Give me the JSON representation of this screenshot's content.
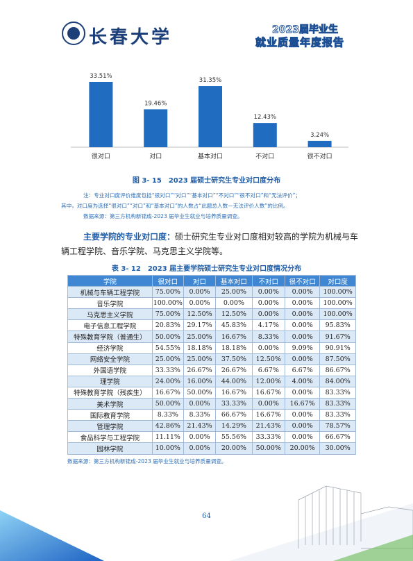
{
  "header": {
    "university": "长春大学",
    "report_year_line": "2023届毕业生",
    "report_title": "就业质量年度报告"
  },
  "chart_data": {
    "type": "bar",
    "categories": [
      "很对口",
      "对口",
      "基本对口",
      "不对口",
      "很不对口"
    ],
    "values": [
      33.51,
      19.46,
      31.35,
      12.43,
      3.24
    ],
    "value_labels": [
      "33.51%",
      "19.46%",
      "31.35%",
      "12.43%",
      "3.24%"
    ],
    "color": "#1f6cc0"
  },
  "figure_caption": "图 3- 15　2023 届硕士研究生专业对口度分布",
  "notes": {
    "line1": "注：专业对口度评价维度包括“很对口”“对口”“基本对口”“不对口”“很不对口”和“无法评价”；",
    "line2": "其中，对口度为选择“很对口”“对口”和“基本对口”的人数占“此题总人数—无法评价人数”的比例。",
    "source": "数据来源：第三方机构新锦成-2023 届毕业生就业与培养质量调查。"
  },
  "paragraph": {
    "lead": "主要学院的专业对口度：",
    "text": "硕士研究生专业对口度相对较高的学院为机械与车辆工程学院、音乐学院、马克思主义学院等。"
  },
  "table_caption": "表 3- 12　2023 届主要学院硕士研究生专业对口度情况分布",
  "table": {
    "header": [
      "学院",
      "很对口",
      "对口",
      "基本对口",
      "不对口",
      "很不对口",
      "对口度"
    ],
    "rows": [
      [
        "机械与车辆工程学院",
        "75.00%",
        "0.00%",
        "25.00%",
        "0.00%",
        "0.00%",
        "100.00%"
      ],
      [
        "音乐学院",
        "100.00%",
        "0.00%",
        "0.00%",
        "0.00%",
        "0.00%",
        "100.00%"
      ],
      [
        "马克思主义学院",
        "75.00%",
        "12.50%",
        "12.50%",
        "0.00%",
        "0.00%",
        "100.00%"
      ],
      [
        "电子信息工程学院",
        "20.83%",
        "29.17%",
        "45.83%",
        "4.17%",
        "0.00%",
        "95.83%"
      ],
      [
        "特殊教育学院（普通生）",
        "50.00%",
        "25.00%",
        "16.67%",
        "8.33%",
        "0.00%",
        "91.67%"
      ],
      [
        "经济学院",
        "54.55%",
        "18.18%",
        "18.18%",
        "0.00%",
        "9.09%",
        "90.91%"
      ],
      [
        "网络安全学院",
        "25.00%",
        "25.00%",
        "37.50%",
        "12.50%",
        "0.00%",
        "87.50%"
      ],
      [
        "外国语学院",
        "33.33%",
        "26.67%",
        "26.67%",
        "6.67%",
        "6.67%",
        "86.67%"
      ],
      [
        "理学院",
        "24.00%",
        "16.00%",
        "44.00%",
        "12.00%",
        "4.00%",
        "84.00%"
      ],
      [
        "特殊教育学院（残疾生）",
        "16.67%",
        "50.00%",
        "16.67%",
        "16.67%",
        "0.00%",
        "83.33%"
      ],
      [
        "美术学院",
        "50.00%",
        "0.00%",
        "33.33%",
        "0.00%",
        "16.67%",
        "83.33%"
      ],
      [
        "国际教育学院",
        "8.33%",
        "8.33%",
        "66.67%",
        "16.67%",
        "0.00%",
        "83.33%"
      ],
      [
        "管理学院",
        "42.86%",
        "21.43%",
        "14.29%",
        "21.43%",
        "0.00%",
        "78.57%"
      ],
      [
        "食品科学与工程学院",
        "11.11%",
        "0.00%",
        "55.56%",
        "33.33%",
        "0.00%",
        "66.67%"
      ],
      [
        "园林学院",
        "10.00%",
        "0.00%",
        "20.00%",
        "50.00%",
        "20.00%",
        "30.00%"
      ]
    ]
  },
  "table_source": "数据来源：第三方机构新锦成-2023 届毕业生就业与培养质量调查。",
  "page_number": "64"
}
